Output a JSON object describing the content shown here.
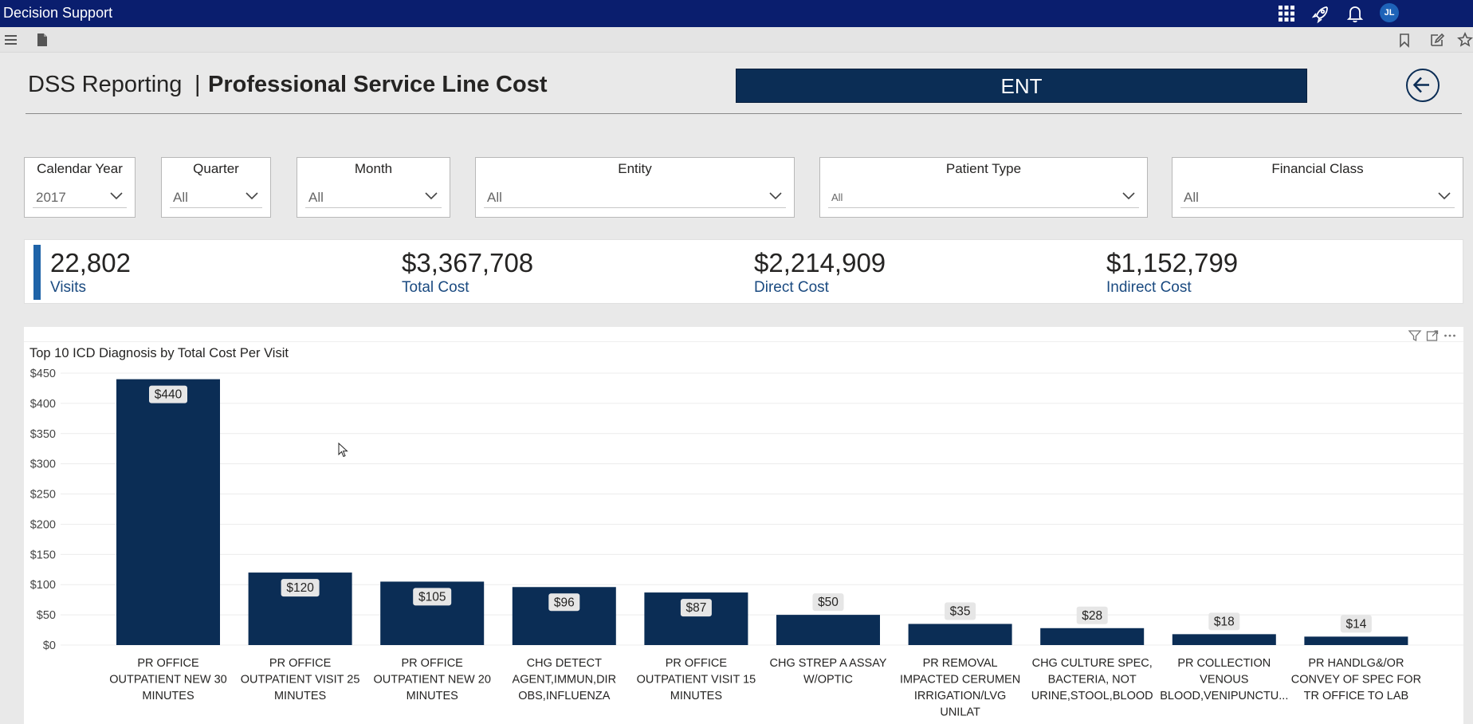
{
  "topbar": {
    "app_title": "Decision Support",
    "user_initials": "JL",
    "icons": [
      "apps-grid-icon",
      "rocket-icon",
      "notification-bell-icon"
    ]
  },
  "toolbar": {
    "icons": [
      "hamburger-menu-icon",
      "page-icon",
      "bookmark-icon",
      "edit-icon",
      "favorite-star-icon"
    ]
  },
  "header": {
    "title_left": "DSS Reporting",
    "title_separator": "|",
    "title_right": "Professional Service Line Cost",
    "service_line": "ENT"
  },
  "filters": {
    "calendar_year": {
      "label": "Calendar Year",
      "value": "2017"
    },
    "quarter": {
      "label": "Quarter",
      "value": "All"
    },
    "month": {
      "label": "Month",
      "value": "All"
    },
    "entity": {
      "label": "Entity",
      "value": "All"
    },
    "patient_type": {
      "label": "Patient Type",
      "value": "All"
    },
    "financial_class": {
      "label": "Financial Class",
      "value": "All"
    }
  },
  "kpis": [
    {
      "value": "22,802",
      "label": "Visits"
    },
    {
      "value": "$3,367,708",
      "label": "Total Cost"
    },
    {
      "value": "$2,214,909",
      "label": "Direct Cost"
    },
    {
      "value": "$1,152,799",
      "label": "Indirect Cost"
    }
  ],
  "colors": {
    "topbar": "#0a1e6e",
    "bar": "#0b2d55",
    "kpi_accent": "#1e63a8",
    "kpi_label": "#1a4a80"
  },
  "chart_data": {
    "type": "bar",
    "title": "Top 10 ICD Diagnosis by Total Cost Per Visit",
    "xlabel": "",
    "ylabel": "",
    "ylim": [
      0,
      450
    ],
    "ytick_step": 50,
    "yticks": [
      "$0",
      "$50",
      "$100",
      "$150",
      "$200",
      "$250",
      "$300",
      "$350",
      "$400",
      "$450"
    ],
    "grid": true,
    "categories": [
      [
        "PR OFFICE",
        "OUTPATIENT NEW 30",
        "MINUTES"
      ],
      [
        "PR OFFICE",
        "OUTPATIENT VISIT 25",
        "MINUTES"
      ],
      [
        "PR OFFICE",
        "OUTPATIENT NEW 20",
        "MINUTES"
      ],
      [
        "CHG DETECT",
        "AGENT,IMMUN,DIR",
        "OBS,INFLUENZA"
      ],
      [
        "PR OFFICE",
        "OUTPATIENT VISIT 15",
        "MINUTES"
      ],
      [
        "CHG STREP A ASSAY",
        "W/OPTIC"
      ],
      [
        "PR REMOVAL",
        "IMPACTED CERUMEN",
        "IRRIGATION/LVG",
        "UNILAT"
      ],
      [
        "CHG CULTURE SPEC,",
        "BACTERIA, NOT",
        "URINE,STOOL,BLOOD"
      ],
      [
        "PR COLLECTION",
        "VENOUS",
        "BLOOD,VENIPUNCTU..."
      ],
      [
        "PR HANDLG&/OR",
        "CONVEY OF SPEC FOR",
        "TR OFFICE TO LAB"
      ]
    ],
    "values": [
      440,
      120,
      105,
      96,
      87,
      50,
      35,
      28,
      18,
      14
    ],
    "data_labels": [
      "$440",
      "$120",
      "$105",
      "$96",
      "$87",
      "$50",
      "$35",
      "$28",
      "$18",
      "$14"
    ]
  }
}
